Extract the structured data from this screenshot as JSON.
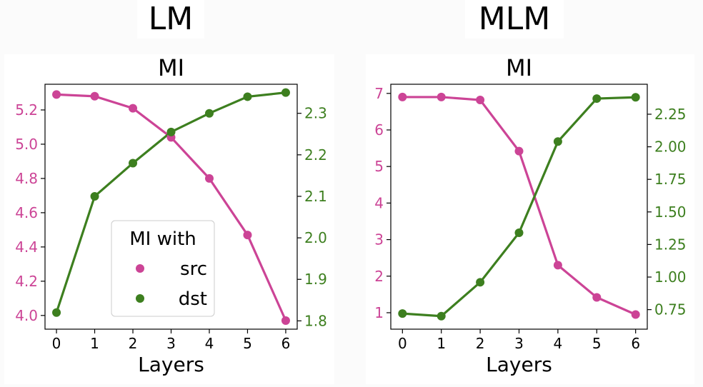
{
  "headers": {
    "left": "LM",
    "right": "MLM"
  },
  "colors": {
    "src": "#cc4496",
    "dst": "#3d7f1f"
  },
  "chart_data": [
    {
      "type": "line",
      "title": "MI",
      "xlabel": "Layers",
      "x": [
        0,
        1,
        2,
        3,
        4,
        5,
        6
      ],
      "xticks": [
        "0",
        "1",
        "2",
        "3",
        "4",
        "5",
        "6"
      ],
      "y_left": {
        "series_name": "src",
        "values": [
          5.29,
          5.28,
          5.21,
          5.04,
          4.8,
          4.47,
          3.97
        ],
        "ylim": [
          3.92,
          5.35
        ],
        "ticks": [
          4.0,
          4.2,
          4.4,
          4.6,
          4.8,
          5.0,
          5.2
        ],
        "tick_labels": [
          "4.0",
          "4.2",
          "4.4",
          "4.6",
          "4.8",
          "5.0",
          "5.2"
        ]
      },
      "y_right": {
        "series_name": "dst",
        "values": [
          1.82,
          2.1,
          2.18,
          2.255,
          2.3,
          2.34,
          2.35
        ],
        "ylim": [
          1.78,
          2.37
        ],
        "ticks": [
          1.8,
          1.9,
          2.0,
          2.1,
          2.2,
          2.3
        ],
        "tick_labels": [
          "1.8",
          "1.9",
          "2.0",
          "2.1",
          "2.2",
          "2.3"
        ]
      },
      "legend": {
        "title": "MI with",
        "entries": [
          "src",
          "dst"
        ],
        "placement": "lower-center"
      }
    },
    {
      "type": "line",
      "title": "MI",
      "xlabel": "Layers",
      "x": [
        0,
        1,
        2,
        3,
        4,
        5,
        6
      ],
      "xticks": [
        "0",
        "1",
        "2",
        "3",
        "4",
        "5",
        "6"
      ],
      "y_left": {
        "series_name": "src",
        "values": [
          6.9,
          6.9,
          6.82,
          5.42,
          2.3,
          1.42,
          0.95
        ],
        "ylim": [
          0.55,
          7.25
        ],
        "ticks": [
          1,
          2,
          3,
          4,
          5,
          6,
          7
        ],
        "tick_labels": [
          "1",
          "2",
          "3",
          "4",
          "5",
          "6",
          "7"
        ]
      },
      "y_right": {
        "series_name": "dst",
        "values": [
          0.72,
          0.7,
          0.96,
          1.34,
          2.04,
          2.37,
          2.38
        ],
        "ylim": [
          0.6,
          2.48
        ],
        "ticks": [
          0.75,
          1.0,
          1.25,
          1.5,
          1.75,
          2.0,
          2.25
        ],
        "tick_labels": [
          "0.75",
          "1.00",
          "1.25",
          "1.50",
          "1.75",
          "2.00",
          "2.25"
        ]
      }
    }
  ]
}
